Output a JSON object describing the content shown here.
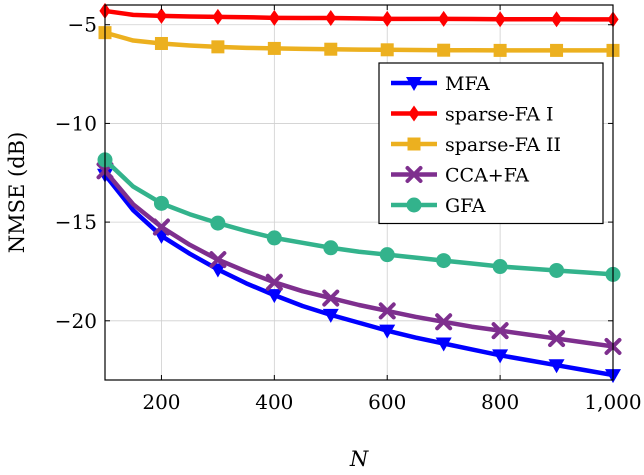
{
  "chart_data": {
    "type": "line",
    "xlabel": "N",
    "ylabel": "NMSE (dB)",
    "xlim": [
      100,
      1000
    ],
    "ylim": [
      -23,
      -4
    ],
    "x_ticks": [
      200,
      400,
      600,
      800,
      1000
    ],
    "x_tick_labels": [
      "200",
      "400",
      "600",
      "800",
      "1,000"
    ],
    "y_ticks": [
      -20,
      -15,
      -10,
      -5
    ],
    "y_tick_labels": [
      "−20",
      "−15",
      "−10",
      "−5"
    ],
    "grid": true,
    "legend_position": "upper-right",
    "x": [
      100,
      150,
      200,
      250,
      300,
      350,
      400,
      450,
      500,
      550,
      600,
      650,
      700,
      750,
      800,
      850,
      900,
      950,
      1000
    ],
    "series": [
      {
        "name": "MFA",
        "color": "#0000ff",
        "marker": "triangle-down",
        "values": [
          -12.6,
          -14.4,
          -15.7,
          -16.6,
          -17.4,
          -18.1,
          -18.7,
          -19.25,
          -19.7,
          -20.1,
          -20.5,
          -20.85,
          -21.15,
          -21.45,
          -21.75,
          -22.0,
          -22.25,
          -22.5,
          -22.75
        ]
      },
      {
        "name": "sparse-FA I",
        "color": "#ff0000",
        "marker": "diamond",
        "values": [
          -4.3,
          -4.5,
          -4.55,
          -4.58,
          -4.6,
          -4.62,
          -4.65,
          -4.66,
          -4.66,
          -4.68,
          -4.7,
          -4.7,
          -4.7,
          -4.71,
          -4.72,
          -4.72,
          -4.72,
          -4.73,
          -4.73
        ]
      },
      {
        "name": "sparse-FA II",
        "color": "#ecb01f",
        "marker": "square",
        "values": [
          -5.4,
          -5.8,
          -5.95,
          -6.05,
          -6.12,
          -6.17,
          -6.2,
          -6.22,
          -6.24,
          -6.26,
          -6.27,
          -6.28,
          -6.29,
          -6.29,
          -6.3,
          -6.3,
          -6.3,
          -6.3,
          -6.3
        ]
      },
      {
        "name": "CCA+FA",
        "color": "#7e2f8e",
        "marker": "x",
        "values": [
          -12.4,
          -14.1,
          -15.25,
          -16.15,
          -16.9,
          -17.5,
          -18.05,
          -18.5,
          -18.85,
          -19.2,
          -19.5,
          -19.8,
          -20.05,
          -20.3,
          -20.5,
          -20.7,
          -20.9,
          -21.1,
          -21.3
        ]
      },
      {
        "name": "GFA",
        "color": "#33b38c",
        "marker": "circle",
        "values": [
          -11.85,
          -13.2,
          -14.05,
          -14.6,
          -15.05,
          -15.45,
          -15.8,
          -16.05,
          -16.3,
          -16.5,
          -16.65,
          -16.8,
          -16.95,
          -17.1,
          -17.25,
          -17.35,
          -17.45,
          -17.55,
          -17.65
        ]
      }
    ]
  }
}
